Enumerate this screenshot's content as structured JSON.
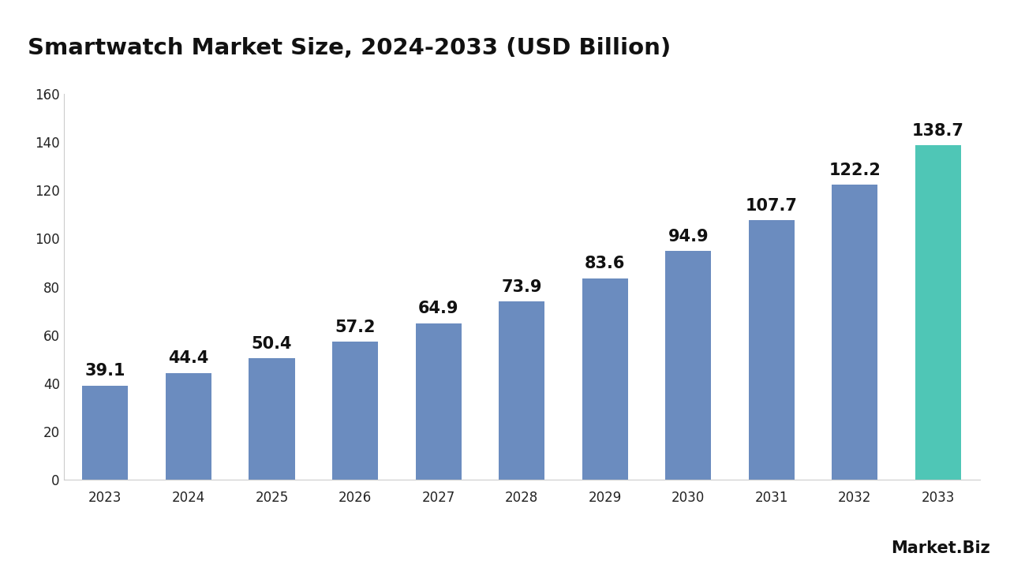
{
  "chart_data": {
    "type": "bar",
    "title": "Smartwatch Market Size, 2024-2033 (USD Billion)",
    "categories": [
      "2023",
      "2024",
      "2025",
      "2026",
      "2027",
      "2028",
      "2029",
      "2030",
      "2031",
      "2032",
      "2033"
    ],
    "values": [
      39.1,
      44.4,
      50.4,
      57.2,
      64.9,
      73.9,
      83.6,
      94.9,
      107.7,
      122.2,
      138.7
    ],
    "colors": [
      "#6b8cbf",
      "#6b8cbf",
      "#6b8cbf",
      "#6b8cbf",
      "#6b8cbf",
      "#6b8cbf",
      "#6b8cbf",
      "#6b8cbf",
      "#6b8cbf",
      "#6b8cbf",
      "#4fc6b6"
    ],
    "ylim": [
      0,
      160
    ],
    "yticks": [
      0,
      20,
      40,
      60,
      80,
      100,
      120,
      140,
      160
    ],
    "grid": false,
    "data_labels": true,
    "annotations": [
      "Market.Biz"
    ]
  }
}
